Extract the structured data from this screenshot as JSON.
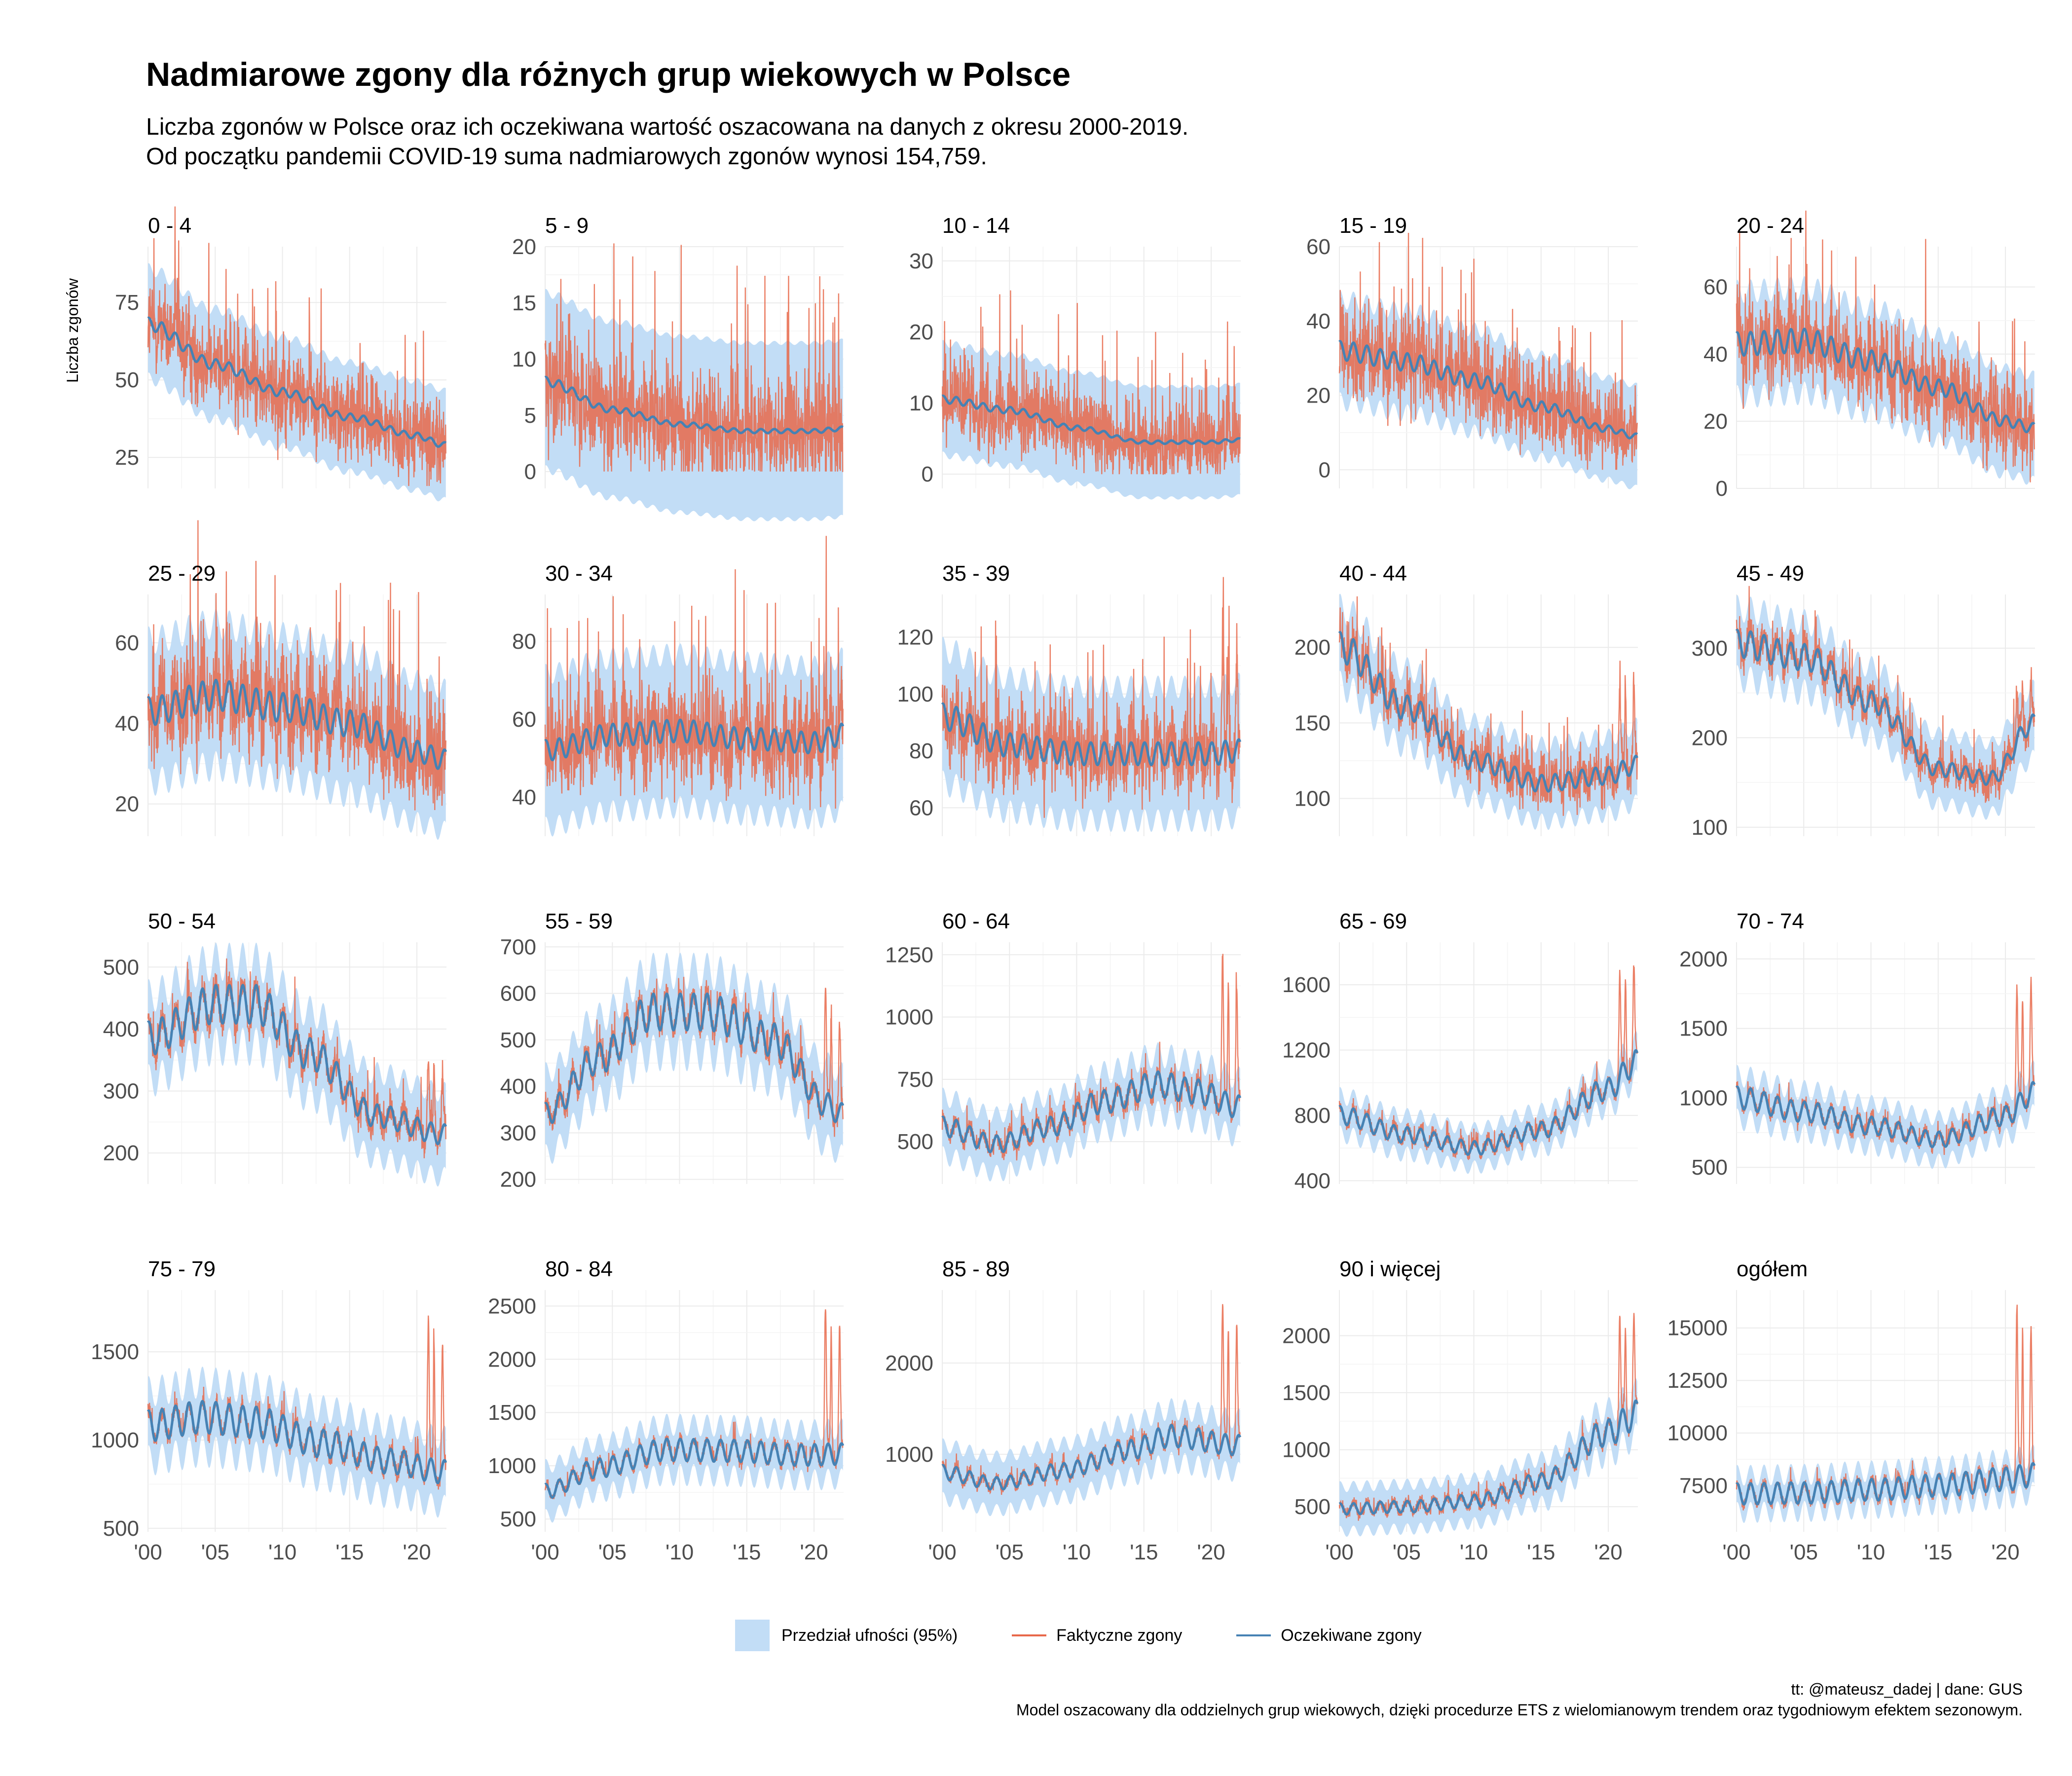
{
  "title": "Nadmiarowe zgony dla różnych grup wiekowych w Polsce",
  "subtitle_line1": "Liczba zgonów w Polsce oraz ich oczekiwana wartość oszacowana na danych z okresu 2000-2019.",
  "subtitle_line2": "Od początku pandemii COVID-19 suma nadmiarowych zgonów wynosi 154,759.",
  "legend": {
    "band_label": "Przedział ufności (95%)",
    "actual_label": "Faktyczne zgony",
    "expected_label": "Oczekiwane zgony"
  },
  "caption_line1": "tt: @mateusz_dadej | dane: GUS",
  "caption_line2": "Model oszacowany dla oddzielnych grup wiekowych, dzięki procedurze ETS z wielomianowym trendem oraz tygodniowym efektem sezonowym.",
  "colors": {
    "band": "#c2ddf6",
    "actual": "#e8684a",
    "expected": "#4682b4",
    "grid": "#ebebeb"
  },
  "chart_data": {
    "type": "line",
    "ylabel": "Liczba zgonów",
    "x_ticks": [
      "'00",
      "'05",
      "'10",
      "'15",
      "'20"
    ],
    "x_range": [
      2000,
      2022.2
    ],
    "series_names": [
      "Faktyczne zgony",
      "Oczekiwane zgony"
    ],
    "panels": [
      {
        "name": "0 - 4",
        "ylim": [
          15,
          93
        ],
        "yticks": [
          25,
          50,
          75
        ],
        "trend": [
          [
            2000,
            68
          ],
          [
            2005,
            55
          ],
          [
            2010,
            46
          ],
          [
            2015,
            38
          ],
          [
            2020,
            32
          ],
          [
            2022,
            29
          ]
        ],
        "season": 0.03,
        "noise": 10,
        "band": 9,
        "covid": 1.0
      },
      {
        "name": "5 - 9",
        "ylim": [
          -1.5,
          20
        ],
        "yticks": [
          0,
          5,
          10,
          15,
          20
        ],
        "trend": [
          [
            2000,
            8
          ],
          [
            2005,
            5.5
          ],
          [
            2010,
            4.2
          ],
          [
            2015,
            3.6
          ],
          [
            2020,
            3.6
          ],
          [
            2022,
            3.8
          ]
        ],
        "season": 0.05,
        "noise": 3.5,
        "band": 4,
        "covid": 1.0
      },
      {
        "name": "10 - 14",
        "ylim": [
          -2,
          32
        ],
        "yticks": [
          0,
          10,
          20,
          30
        ],
        "trend": [
          [
            2000,
            10.5
          ],
          [
            2005,
            9
          ],
          [
            2010,
            6.5
          ],
          [
            2015,
            4.5
          ],
          [
            2020,
            4.5
          ],
          [
            2022,
            4.8
          ]
        ],
        "season": 0.05,
        "noise": 4,
        "band": 4,
        "covid": 1.0
      },
      {
        "name": "15 - 19",
        "ylim": [
          -5,
          60
        ],
        "yticks": [
          0,
          20,
          40,
          60
        ],
        "trend": [
          [
            2000,
            32
          ],
          [
            2005,
            29
          ],
          [
            2010,
            24
          ],
          [
            2015,
            17
          ],
          [
            2020,
            11
          ],
          [
            2022,
            9
          ]
        ],
        "season": 0.08,
        "noise": 8,
        "band": 7,
        "covid": 1.0
      },
      {
        "name": "20 - 24",
        "ylim": [
          0,
          72
        ],
        "yticks": [
          0,
          20,
          40,
          60
        ],
        "trend": [
          [
            2000,
            43
          ],
          [
            2005,
            44
          ],
          [
            2010,
            38
          ],
          [
            2015,
            30
          ],
          [
            2020,
            20
          ],
          [
            2022,
            18
          ]
        ],
        "season": 0.08,
        "noise": 9,
        "band": 8,
        "covid": 1.0
      },
      {
        "name": "25 - 29",
        "ylim": [
          12,
          72
        ],
        "yticks": [
          20,
          40,
          60
        ],
        "trend": [
          [
            2000,
            43
          ],
          [
            2005,
            47
          ],
          [
            2010,
            44
          ],
          [
            2015,
            40
          ],
          [
            2020,
            33
          ],
          [
            2022,
            31
          ]
        ],
        "season": 0.08,
        "noise": 9,
        "band": 9,
        "covid": 1.0
      },
      {
        "name": "30 - 34",
        "ylim": [
          30,
          92
        ],
        "yticks": [
          40,
          60,
          80
        ],
        "trend": [
          [
            2000,
            52
          ],
          [
            2005,
            56
          ],
          [
            2010,
            57
          ],
          [
            2015,
            55
          ],
          [
            2020,
            54
          ],
          [
            2022,
            56
          ]
        ],
        "season": 0.05,
        "noise": 9,
        "band": 10,
        "covid": 1.2
      },
      {
        "name": "35 - 39",
        "ylim": [
          50,
          135
        ],
        "yticks": [
          60,
          80,
          100,
          120
        ],
        "trend": [
          [
            2000,
            92
          ],
          [
            2005,
            82
          ],
          [
            2010,
            79
          ],
          [
            2015,
            79
          ],
          [
            2020,
            79
          ],
          [
            2022,
            80
          ]
        ],
        "season": 0.05,
        "noise": 10,
        "band": 12,
        "covid": 1.45
      },
      {
        "name": "40 - 44",
        "ylim": [
          75,
          235
        ],
        "yticks": [
          100,
          150,
          200
        ],
        "trend": [
          [
            2000,
            200
          ],
          [
            2005,
            160
          ],
          [
            2010,
            125
          ],
          [
            2015,
            110
          ],
          [
            2020,
            115
          ],
          [
            2022,
            122
          ]
        ],
        "season": 0.05,
        "noise": 11,
        "band": 13,
        "covid": 1.5
      },
      {
        "name": "45 - 49",
        "ylim": [
          90,
          360
        ],
        "yticks": [
          100,
          200,
          300
        ],
        "trend": [
          [
            2000,
            305
          ],
          [
            2005,
            290
          ],
          [
            2010,
            240
          ],
          [
            2015,
            165
          ],
          [
            2019,
            155
          ],
          [
            2022,
            215
          ]
        ],
        "season": 0.05,
        "noise": 14,
        "band": 20,
        "covid": 1.25
      },
      {
        "name": "50 - 54",
        "ylim": [
          150,
          540
        ],
        "yticks": [
          200,
          300,
          400,
          500
        ],
        "trend": [
          [
            2000,
            385
          ],
          [
            2005,
            440
          ],
          [
            2008,
            440
          ],
          [
            2012,
            360
          ],
          [
            2017,
            260
          ],
          [
            2022,
            230
          ]
        ],
        "season": 0.07,
        "noise": 18,
        "band": 35,
        "covid": 1.5
      },
      {
        "name": "55 - 59",
        "ylim": [
          190,
          710
        ],
        "yticks": [
          200,
          300,
          400,
          500,
          600,
          700
        ],
        "trend": [
          [
            2000,
            340
          ],
          [
            2004,
            460
          ],
          [
            2008,
            560
          ],
          [
            2012,
            560
          ],
          [
            2017,
            500
          ],
          [
            2021,
            360
          ],
          [
            2022,
            340
          ]
        ],
        "season": 0.07,
        "noise": 20,
        "band": 45,
        "covid": 1.65
      },
      {
        "name": "60 - 64",
        "ylim": [
          330,
          1300
        ],
        "yticks": [
          500,
          750,
          1000,
          1250
        ],
        "trend": [
          [
            2000,
            560
          ],
          [
            2004,
            490
          ],
          [
            2008,
            560
          ],
          [
            2012,
            660
          ],
          [
            2016,
            730
          ],
          [
            2019,
            700
          ],
          [
            2022,
            640
          ]
        ],
        "season": 0.07,
        "noise": 28,
        "band": 60,
        "covid": 1.85
      },
      {
        "name": "65 - 69",
        "ylim": [
          380,
          1860
        ],
        "yticks": [
          400,
          800,
          1200,
          1600
        ],
        "trend": [
          [
            2000,
            800
          ],
          [
            2005,
            680
          ],
          [
            2010,
            600
          ],
          [
            2015,
            710
          ],
          [
            2020,
            960
          ],
          [
            2022,
            1120
          ]
        ],
        "season": 0.07,
        "noise": 30,
        "band": 60,
        "covid": 1.6
      },
      {
        "name": "70 - 74",
        "ylim": [
          380,
          2120
        ],
        "yticks": [
          500,
          1000,
          1500,
          2000
        ],
        "trend": [
          [
            2000,
            1000
          ],
          [
            2005,
            900
          ],
          [
            2010,
            800
          ],
          [
            2015,
            700
          ],
          [
            2020,
            870
          ],
          [
            2022,
            1030
          ]
        ],
        "season": 0.08,
        "noise": 35,
        "band": 80,
        "covid": 1.9
      },
      {
        "name": "75 - 79",
        "ylim": [
          480,
          1850
        ],
        "yticks": [
          500,
          1000,
          1500
        ],
        "trend": [
          [
            2000,
            1080
          ],
          [
            2004,
            1130
          ],
          [
            2008,
            1100
          ],
          [
            2013,
            980
          ],
          [
            2018,
            880
          ],
          [
            2022,
            820
          ]
        ],
        "season": 0.08,
        "noise": 35,
        "band": 100,
        "covid": 2.0
      },
      {
        "name": "80 - 84",
        "ylim": [
          380,
          2650
        ],
        "yticks": [
          500,
          1000,
          1500,
          2000,
          2500
        ],
        "trend": [
          [
            2000,
            760
          ],
          [
            2004,
            980
          ],
          [
            2009,
            1150
          ],
          [
            2014,
            1140
          ],
          [
            2019,
            1100
          ],
          [
            2022,
            1110
          ]
        ],
        "season": 0.09,
        "noise": 40,
        "band": 120,
        "covid": 2.2
      },
      {
        "name": "85 - 89",
        "ylim": [
          150,
          2800
        ],
        "yticks": [
          1000,
          2000
        ],
        "trend": [
          [
            2000,
            800
          ],
          [
            2004,
            680
          ],
          [
            2009,
            820
          ],
          [
            2014,
            1050
          ],
          [
            2017,
            1200
          ],
          [
            2022,
            1100
          ]
        ],
        "season": 0.1,
        "noise": 45,
        "band": 150,
        "covid": 2.3
      },
      {
        "name": "90 i więcej",
        "ylim": [
          280,
          2400
        ],
        "yticks": [
          500,
          1000,
          1500,
          2000
        ],
        "trend": [
          [
            2000,
            480
          ],
          [
            2005,
            500
          ],
          [
            2010,
            550
          ],
          [
            2015,
            720
          ],
          [
            2020,
            1150
          ],
          [
            2022,
            1300
          ]
        ],
        "season": 0.1,
        "noise": 40,
        "band": 100,
        "covid": 1.75
      },
      {
        "name": "ogółem",
        "ylim": [
          5300,
          16800
        ],
        "yticks": [
          7500,
          10000,
          12500,
          15000
        ],
        "trend": [
          [
            2000,
            7100
          ],
          [
            2005,
            7150
          ],
          [
            2010,
            7300
          ],
          [
            2015,
            7500
          ],
          [
            2020,
            7800
          ],
          [
            2022,
            8000
          ]
        ],
        "season": 0.07,
        "noise": 200,
        "band": 450,
        "covid": 2.0
      }
    ]
  }
}
